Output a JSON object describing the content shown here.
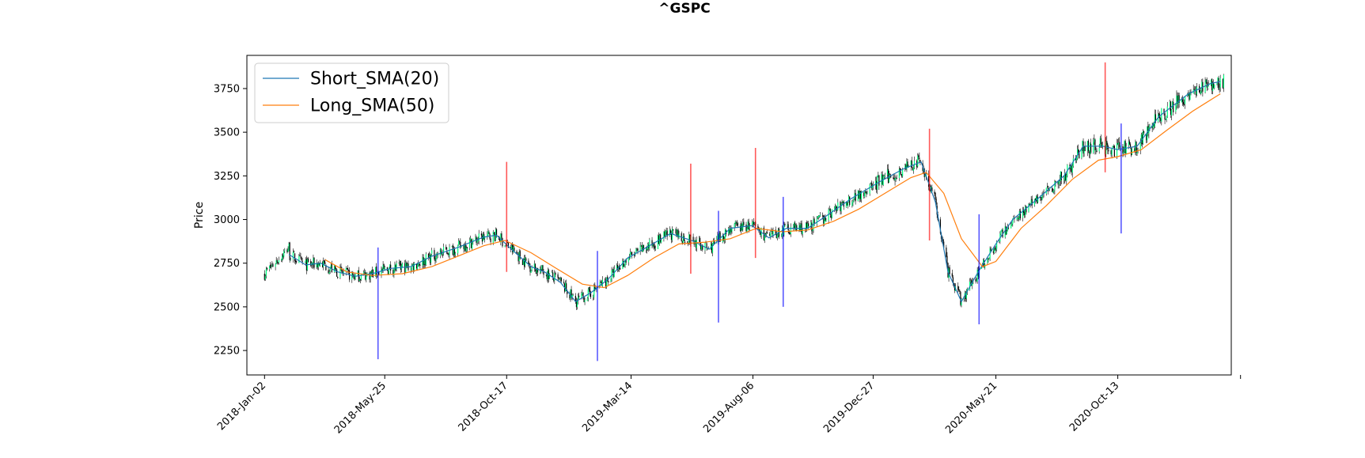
{
  "chart_data": {
    "type": "line",
    "title": "^GSPC",
    "xlabel": "",
    "ylabel": "Price",
    "x_range": [
      "2017-12-12",
      "2021-02-25"
    ],
    "ylim": [
      2110,
      3940
    ],
    "x_ticks": [
      {
        "date": "2018-01-02",
        "label": "2018-Jan-02"
      },
      {
        "date": "2018-05-25",
        "label": "2018-May-25"
      },
      {
        "date": "2018-10-17",
        "label": "2018-Oct-17"
      },
      {
        "date": "2019-03-14",
        "label": "2019-Mar-14"
      },
      {
        "date": "2019-08-06",
        "label": "2019-Aug-06"
      },
      {
        "date": "2019-12-27",
        "label": "2019-Dec-27"
      },
      {
        "date": "2020-05-21",
        "label": "2020-May-21"
      },
      {
        "date": "2020-10-13",
        "label": "2020-Oct-13"
      },
      {
        "date": "2021-03-08",
        "label": ""
      }
    ],
    "y_ticks": [
      2250,
      2500,
      2750,
      3000,
      3250,
      3500,
      3750
    ],
    "legend": {
      "placement": "top-left"
    },
    "grid": false,
    "series": [
      {
        "name": "Short_SMA(20)",
        "color": "#1f77b4",
        "points": [
          [
            "2018-01-31",
            2800
          ],
          [
            "2018-02-20",
            2740
          ],
          [
            "2018-03-10",
            2750
          ],
          [
            "2018-03-30",
            2700
          ],
          [
            "2018-04-20",
            2675
          ],
          [
            "2018-05-10",
            2690
          ],
          [
            "2018-06-01",
            2720
          ],
          [
            "2018-06-25",
            2730
          ],
          [
            "2018-07-20",
            2790
          ],
          [
            "2018-08-20",
            2840
          ],
          [
            "2018-09-20",
            2900
          ],
          [
            "2018-10-05",
            2910
          ],
          [
            "2018-10-25",
            2820
          ],
          [
            "2018-11-15",
            2730
          ],
          [
            "2018-12-01",
            2700
          ],
          [
            "2018-12-20",
            2640
          ],
          [
            "2019-01-07",
            2530
          ],
          [
            "2019-01-25",
            2580
          ],
          [
            "2019-02-15",
            2660
          ],
          [
            "2019-03-10",
            2780
          ],
          [
            "2019-04-05",
            2850
          ],
          [
            "2019-04-30",
            2920
          ],
          [
            "2019-05-25",
            2880
          ],
          [
            "2019-06-15",
            2830
          ],
          [
            "2019-07-10",
            2950
          ],
          [
            "2019-08-05",
            2965
          ],
          [
            "2019-08-25",
            2895
          ],
          [
            "2019-09-15",
            2950
          ],
          [
            "2019-10-10",
            2950
          ],
          [
            "2019-11-01",
            3020
          ],
          [
            "2019-12-01",
            3120
          ],
          [
            "2020-01-05",
            3220
          ],
          [
            "2020-02-01",
            3290
          ],
          [
            "2020-02-22",
            3330
          ],
          [
            "2020-03-10",
            3100
          ],
          [
            "2020-03-25",
            2700
          ],
          [
            "2020-04-10",
            2530
          ],
          [
            "2020-04-30",
            2700
          ],
          [
            "2020-05-21",
            2860
          ],
          [
            "2020-06-10",
            3000
          ],
          [
            "2020-07-10",
            3120
          ],
          [
            "2020-08-10",
            3250
          ],
          [
            "2020-09-02",
            3420
          ],
          [
            "2020-09-25",
            3420
          ],
          [
            "2020-10-13",
            3400
          ],
          [
            "2020-11-05",
            3420
          ],
          [
            "2020-12-01",
            3590
          ],
          [
            "2021-01-05",
            3720
          ],
          [
            "2021-02-01",
            3780
          ],
          [
            "2021-02-12",
            3790
          ]
        ]
      },
      {
        "name": "Long_SMA(50)",
        "color": "#ff7f0e",
        "points": [
          [
            "2018-03-15",
            2770
          ],
          [
            "2018-04-10",
            2700
          ],
          [
            "2018-05-10",
            2680
          ],
          [
            "2018-06-15",
            2690
          ],
          [
            "2018-07-20",
            2730
          ],
          [
            "2018-08-20",
            2790
          ],
          [
            "2018-09-20",
            2850
          ],
          [
            "2018-10-15",
            2880
          ],
          [
            "2018-11-15",
            2810
          ],
          [
            "2018-12-15",
            2720
          ],
          [
            "2019-01-15",
            2630
          ],
          [
            "2019-02-10",
            2610
          ],
          [
            "2019-03-10",
            2680
          ],
          [
            "2019-04-10",
            2780
          ],
          [
            "2019-05-10",
            2860
          ],
          [
            "2019-06-10",
            2870
          ],
          [
            "2019-07-10",
            2890
          ],
          [
            "2019-08-10",
            2950
          ],
          [
            "2019-09-10",
            2930
          ],
          [
            "2019-10-10",
            2940
          ],
          [
            "2019-11-10",
            2990
          ],
          [
            "2019-12-10",
            3060
          ],
          [
            "2020-01-10",
            3150
          ],
          [
            "2020-02-10",
            3240
          ],
          [
            "2020-02-28",
            3270
          ],
          [
            "2020-03-20",
            3150
          ],
          [
            "2020-04-10",
            2890
          ],
          [
            "2020-05-05",
            2730
          ],
          [
            "2020-05-21",
            2760
          ],
          [
            "2020-06-20",
            2950
          ],
          [
            "2020-07-20",
            3080
          ],
          [
            "2020-08-20",
            3230
          ],
          [
            "2020-09-20",
            3340
          ],
          [
            "2020-10-13",
            3360
          ],
          [
            "2020-11-10",
            3400
          ],
          [
            "2020-12-10",
            3510
          ],
          [
            "2021-01-10",
            3620
          ],
          [
            "2021-02-12",
            3720
          ]
        ]
      }
    ],
    "signals": [
      {
        "kind": "sell",
        "color": "#ff0000",
        "lines": [
          {
            "date": "2018-10-17",
            "y_low": 2700,
            "y_high": 3330
          },
          {
            "date": "2019-05-24",
            "y_low": 2690,
            "y_high": 3320
          },
          {
            "date": "2019-08-09",
            "y_low": 2780,
            "y_high": 3410
          },
          {
            "date": "2020-03-03",
            "y_low": 2880,
            "y_high": 3520
          },
          {
            "date": "2020-09-28",
            "y_low": 3270,
            "y_high": 3900
          }
        ]
      },
      {
        "kind": "buy",
        "color": "#0000ff",
        "lines": [
          {
            "date": "2018-05-17",
            "y_low": 2200,
            "y_high": 2840
          },
          {
            "date": "2019-02-02",
            "y_low": 2190,
            "y_high": 2820
          },
          {
            "date": "2019-06-26",
            "y_low": 2410,
            "y_high": 3050
          },
          {
            "date": "2019-09-11",
            "y_low": 2500,
            "y_high": 3130
          },
          {
            "date": "2020-05-01",
            "y_low": 2400,
            "y_high": 3030
          },
          {
            "date": "2020-10-17",
            "y_low": 2920,
            "y_high": 3550
          }
        ]
      }
    ],
    "candles": {
      "up_color": "#00ff7f",
      "down_color": "#000000",
      "start": "2018-01-02",
      "end": "2021-02-16"
    }
  }
}
